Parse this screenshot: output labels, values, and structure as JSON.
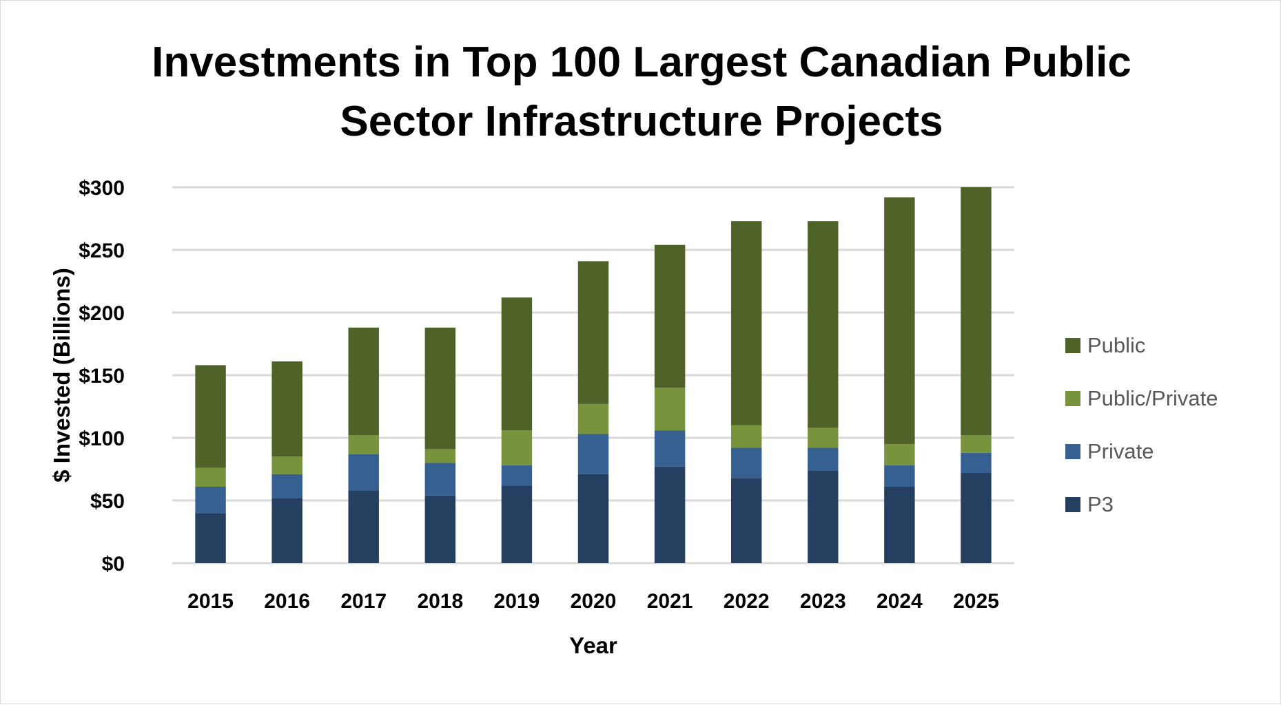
{
  "chart_data": {
    "type": "bar",
    "stacked": true,
    "title": "Investments in Top 100 Largest Canadian Public Sector Infrastructure Projects",
    "title_lines": [
      "Investments in Top 100 Largest Canadian Public",
      "Sector Infrastructure Projects"
    ],
    "xlabel": "Year",
    "ylabel": "$ Invested (Billions)",
    "ylim": [
      0,
      300
    ],
    "yticks": [
      0,
      50,
      100,
      150,
      200,
      250,
      300
    ],
    "ytick_labels": [
      "$0",
      "$50",
      "$100",
      "$150",
      "$200",
      "$250",
      "$300"
    ],
    "grid": true,
    "legend_position": "right",
    "categories": [
      "2015",
      "2016",
      "2017",
      "2018",
      "2019",
      "2020",
      "2021",
      "2022",
      "2023",
      "2024",
      "2025"
    ],
    "series": [
      {
        "name": "P3",
        "color": "#243f60",
        "values": [
          40,
          52,
          58,
          54,
          62,
          71,
          77,
          68,
          74,
          61,
          72
        ]
      },
      {
        "name": "Private",
        "color": "#366092",
        "values": [
          21,
          19,
          29,
          26,
          16,
          32,
          29,
          24,
          18,
          17,
          16
        ]
      },
      {
        "name": "Public/Private",
        "color": "#77933c",
        "values": [
          15,
          14,
          15,
          11,
          28,
          24,
          34,
          18,
          16,
          17,
          14
        ]
      },
      {
        "name": "Public",
        "color": "#4f6228",
        "values": [
          82,
          76,
          86,
          97,
          106,
          114,
          114,
          163,
          165,
          197,
          198
        ]
      }
    ],
    "legend_order": [
      "Public",
      "Public/Private",
      "Private",
      "P3"
    ]
  }
}
